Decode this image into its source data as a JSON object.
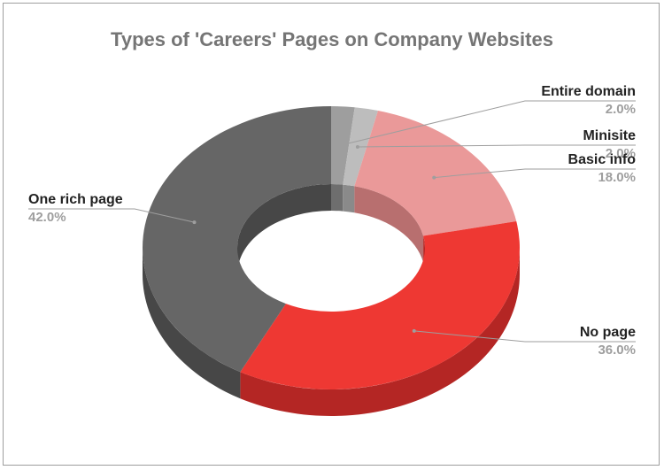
{
  "chart_data": {
    "type": "pie",
    "subtype": "3d-donut",
    "title": "Types of 'Careers' Pages on Company Websites",
    "slices": [
      {
        "name": "Entire domain",
        "value": 2.0,
        "label_pct": "2.0%",
        "color": "#9e9e9e",
        "side_color": "#6e6e6e"
      },
      {
        "name": "Minisite",
        "value": 2.0,
        "label_pct": "2.0%",
        "color": "#bdbdbd",
        "side_color": "#8a8a8a"
      },
      {
        "name": "Basic info",
        "value": 18.0,
        "label_pct": "18.0%",
        "color": "#ea9999",
        "side_color": "#b86f6f"
      },
      {
        "name": "No page",
        "value": 36.0,
        "label_pct": "36.0%",
        "color": "#ee3833",
        "side_color": "#b42624"
      },
      {
        "name": "One rich page",
        "value": 42.0,
        "label_pct": "42.0%",
        "color": "#666666",
        "side_color": "#474747"
      }
    ],
    "legend": "none"
  }
}
